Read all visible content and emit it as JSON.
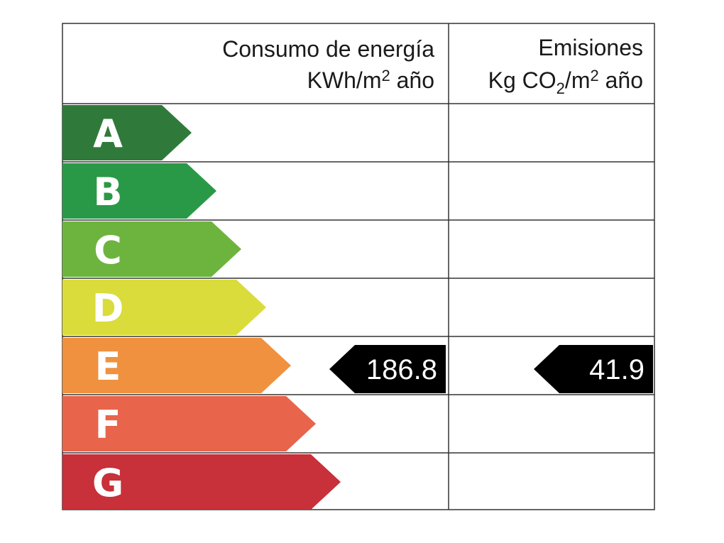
{
  "header": {
    "energy": {
      "line1": "Consumo de energía",
      "line2": [
        "KWh/m",
        "2",
        " año"
      ]
    },
    "emissions": {
      "line1": "Emisiones",
      "line2": [
        "Kg CO",
        "2",
        "/m",
        "2",
        " año"
      ]
    }
  },
  "ratings": [
    {
      "letter": "A",
      "color": "#2f7a3b"
    },
    {
      "letter": "B",
      "color": "#2a9947"
    },
    {
      "letter": "C",
      "color": "#6db43f"
    },
    {
      "letter": "D",
      "color": "#d9dc3a"
    },
    {
      "letter": "E",
      "color": "#ef913f"
    },
    {
      "letter": "F",
      "color": "#e8644b"
    },
    {
      "letter": "G",
      "color": "#c8303a"
    }
  ],
  "energy": {
    "rating": "E",
    "value": 186.8
  },
  "emissions": {
    "rating": "E",
    "value": 41.9
  }
}
